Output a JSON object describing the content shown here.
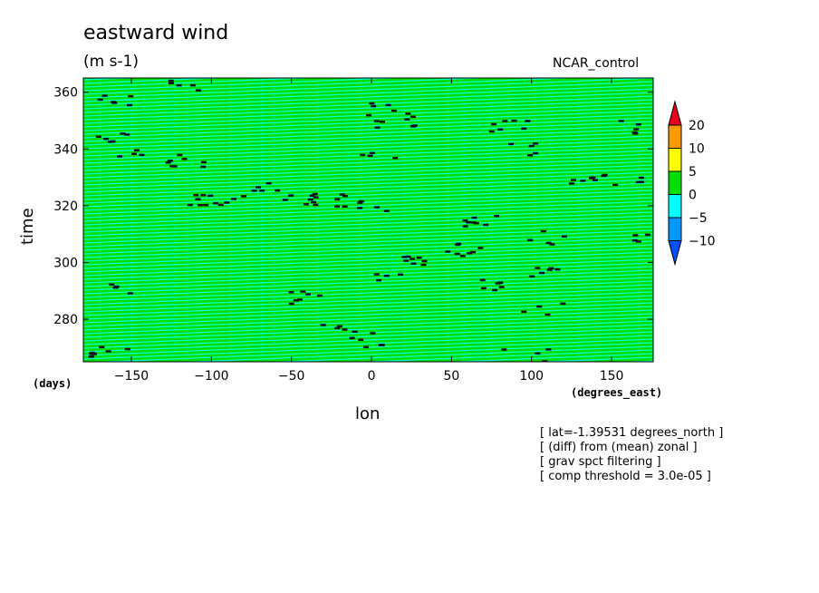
{
  "chart_data": {
    "type": "heatmap",
    "title": "eastward wind",
    "units": "(m s-1)",
    "case": "NCAR_control",
    "xlabel": "lon",
    "ylabel": "time",
    "x_unit_left": "(days)",
    "x_unit_right": "(degrees_east)",
    "xlim": [
      -180,
      176
    ],
    "ylim": [
      265,
      365
    ],
    "xticks": [
      -150,
      -100,
      -50,
      0,
      50,
      100,
      150
    ],
    "yticks": [
      280,
      300,
      320,
      340,
      360
    ],
    "colorbar": {
      "levels": [
        "20",
        "10",
        "5",
        "0",
        "-5",
        "-10"
      ],
      "colors": [
        "#e8001e",
        "#ff9900",
        "#ffff00",
        "#00e000",
        "#00ffff",
        "#0098ff",
        "#0050ff"
      ]
    },
    "notes": [
      "[ lat=-1.39531 degrees_north ]",
      "[ (diff) from (mean) zonal ]",
      "[ grav spct filtering ]",
      "[ comp threshold = 3.0e-05 ]"
    ]
  }
}
